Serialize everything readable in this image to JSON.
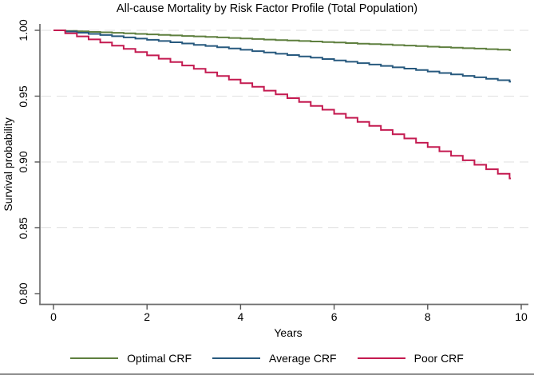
{
  "chart_data": {
    "type": "line",
    "variant": "kaplan-meier-step-survival",
    "title": "All-cause Mortality by Risk Factor Profile (Total Population)",
    "xlabel": "Years",
    "ylabel": "Survival probability",
    "xlim": [
      0,
      10.15
    ],
    "ylim": [
      0.8,
      1.0
    ],
    "xticks": [
      "0",
      "2",
      "4",
      "6",
      "8",
      "10"
    ],
    "yticks": [
      "1.00",
      "0.95",
      "0.90",
      "0.85",
      "0.80"
    ],
    "grid": {
      "y_values": [
        1.0,
        0.95,
        0.9,
        0.85
      ],
      "style": "dashed",
      "color": "#dfdfdf"
    },
    "legend_position": "bottom",
    "axis_color": "#6e6e6e",
    "end_x": 9.78,
    "x": [
      0,
      0.25,
      0.5,
      0.75,
      1,
      1.25,
      1.5,
      1.75,
      2,
      2.25,
      2.5,
      2.75,
      3,
      3.25,
      3.5,
      3.75,
      4,
      4.25,
      4.5,
      4.75,
      5,
      5.25,
      5.5,
      5.75,
      6,
      6.25,
      6.5,
      6.75,
      7,
      7.25,
      7.5,
      7.75,
      8,
      8.25,
      8.5,
      8.75,
      9,
      9.25,
      9.5,
      9.75
    ],
    "series": [
      {
        "name": "Optimal CRF",
        "color": "#5e7f3e",
        "values": [
          1.0,
          0.9996,
          0.9992,
          0.9988,
          0.9985,
          0.9981,
          0.9977,
          0.9973,
          0.9969,
          0.9965,
          0.9961,
          0.9957,
          0.9954,
          0.995,
          0.9946,
          0.9942,
          0.9938,
          0.9934,
          0.993,
          0.9926,
          0.9923,
          0.9919,
          0.9915,
          0.9911,
          0.9907,
          0.9903,
          0.9899,
          0.9895,
          0.9892,
          0.9888,
          0.9884,
          0.988,
          0.9876,
          0.9872,
          0.9868,
          0.9864,
          0.9861,
          0.9857,
          0.9853,
          0.9849
        ]
      },
      {
        "name": "Average CRF",
        "color": "#27597e",
        "values": [
          1.0,
          0.9991,
          0.9982,
          0.9973,
          0.9964,
          0.9955,
          0.9946,
          0.9937,
          0.9928,
          0.9919,
          0.9909,
          0.99,
          0.989,
          0.9881,
          0.9871,
          0.9862,
          0.9852,
          0.9842,
          0.9832,
          0.9822,
          0.9812,
          0.9802,
          0.9792,
          0.9782,
          0.9771,
          0.9761,
          0.9751,
          0.974,
          0.973,
          0.9719,
          0.9709,
          0.9698,
          0.9687,
          0.9676,
          0.9665,
          0.9654,
          0.9643,
          0.9632,
          0.9621,
          0.961
        ]
      },
      {
        "name": "Poor CRF",
        "color": "#c41a50",
        "values": [
          1.0,
          0.9977,
          0.9954,
          0.9931,
          0.9907,
          0.9883,
          0.9859,
          0.9835,
          0.981,
          0.9784,
          0.9759,
          0.9733,
          0.9707,
          0.968,
          0.9653,
          0.9626,
          0.9598,
          0.9571,
          0.9542,
          0.9514,
          0.9485,
          0.9456,
          0.9426,
          0.9397,
          0.9366,
          0.9336,
          0.9305,
          0.9274,
          0.9243,
          0.9211,
          0.9179,
          0.9146,
          0.9114,
          0.9081,
          0.9047,
          0.9013,
          0.8979,
          0.8945,
          0.891,
          0.8875
        ]
      }
    ]
  }
}
